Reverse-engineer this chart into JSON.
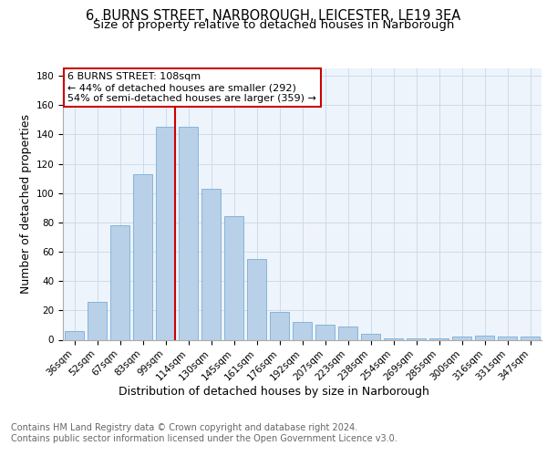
{
  "title_line1": "6, BURNS STREET, NARBOROUGH, LEICESTER, LE19 3EA",
  "title_line2": "Size of property relative to detached houses in Narborough",
  "xlabel": "Distribution of detached houses by size in Narborough",
  "ylabel": "Number of detached properties",
  "categories": [
    "36sqm",
    "52sqm",
    "67sqm",
    "83sqm",
    "99sqm",
    "114sqm",
    "130sqm",
    "145sqm",
    "161sqm",
    "176sqm",
    "192sqm",
    "207sqm",
    "223sqm",
    "238sqm",
    "254sqm",
    "269sqm",
    "285sqm",
    "300sqm",
    "316sqm",
    "331sqm",
    "347sqm"
  ],
  "values": [
    6,
    26,
    78,
    113,
    145,
    145,
    103,
    84,
    55,
    19,
    12,
    10,
    9,
    4,
    1,
    1,
    1,
    2,
    3,
    2,
    2
  ],
  "bar_color": "#b8d0e8",
  "bar_edge_color": "#7aaed6",
  "vline_color": "#cc0000",
  "annotation_text": "6 BURNS STREET: 108sqm\n← 44% of detached houses are smaller (292)\n54% of semi-detached houses are larger (359) →",
  "annotation_box_color": "#ffffff",
  "annotation_box_edge": "#cc0000",
  "grid_color": "#c8d8e8",
  "background_color": "#eef4fb",
  "ylim": [
    0,
    185
  ],
  "yticks": [
    0,
    20,
    40,
    60,
    80,
    100,
    120,
    140,
    160,
    180
  ],
  "footer_line1": "Contains HM Land Registry data © Crown copyright and database right 2024.",
  "footer_line2": "Contains public sector information licensed under the Open Government Licence v3.0.",
  "title_fontsize": 10.5,
  "subtitle_fontsize": 9.5,
  "axis_label_fontsize": 9,
  "tick_fontsize": 7.5,
  "annotation_fontsize": 8,
  "footer_fontsize": 7
}
